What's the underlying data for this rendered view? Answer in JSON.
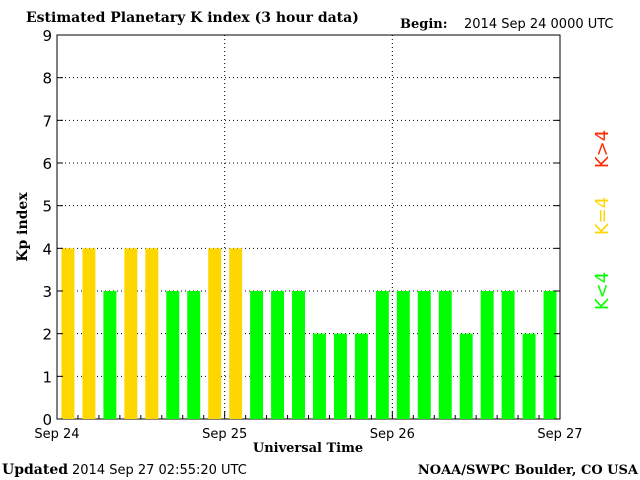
{
  "header": {
    "title": "Estimated Planetary K index (3 hour data)",
    "begin_label": "Begin:",
    "begin_value": "2014 Sep 24 0000 UTC"
  },
  "footer": {
    "updated_label": "Updated",
    "updated_value": "2014 Sep 27 02:55:20 UTC",
    "credit": "NOAA/SWPC Boulder, CO USA"
  },
  "legend": {
    "low": "K<4",
    "mid": "K=4",
    "high": "K>4"
  },
  "colors": {
    "low": "#00ff00",
    "mid": "#ffd700",
    "high": "#ff2a00"
  },
  "chart_data": {
    "type": "bar",
    "title": "Estimated Planetary K index (3 hour data)",
    "xlabel": "Universal Time",
    "ylabel": "Kp index",
    "ylim": [
      0,
      9
    ],
    "yticks": [
      "0",
      "1",
      "2",
      "3",
      "4",
      "5",
      "6",
      "7",
      "8",
      "9"
    ],
    "xticks": [
      "Sep 24",
      "Sep 25",
      "Sep 26",
      "Sep 27"
    ],
    "grid": true,
    "values": [
      4,
      4,
      3,
      4,
      4,
      3,
      3,
      4,
      4,
      3,
      3,
      3,
      2,
      2,
      2,
      3,
      3,
      3,
      3,
      2,
      3,
      3,
      2,
      3
    ]
  }
}
